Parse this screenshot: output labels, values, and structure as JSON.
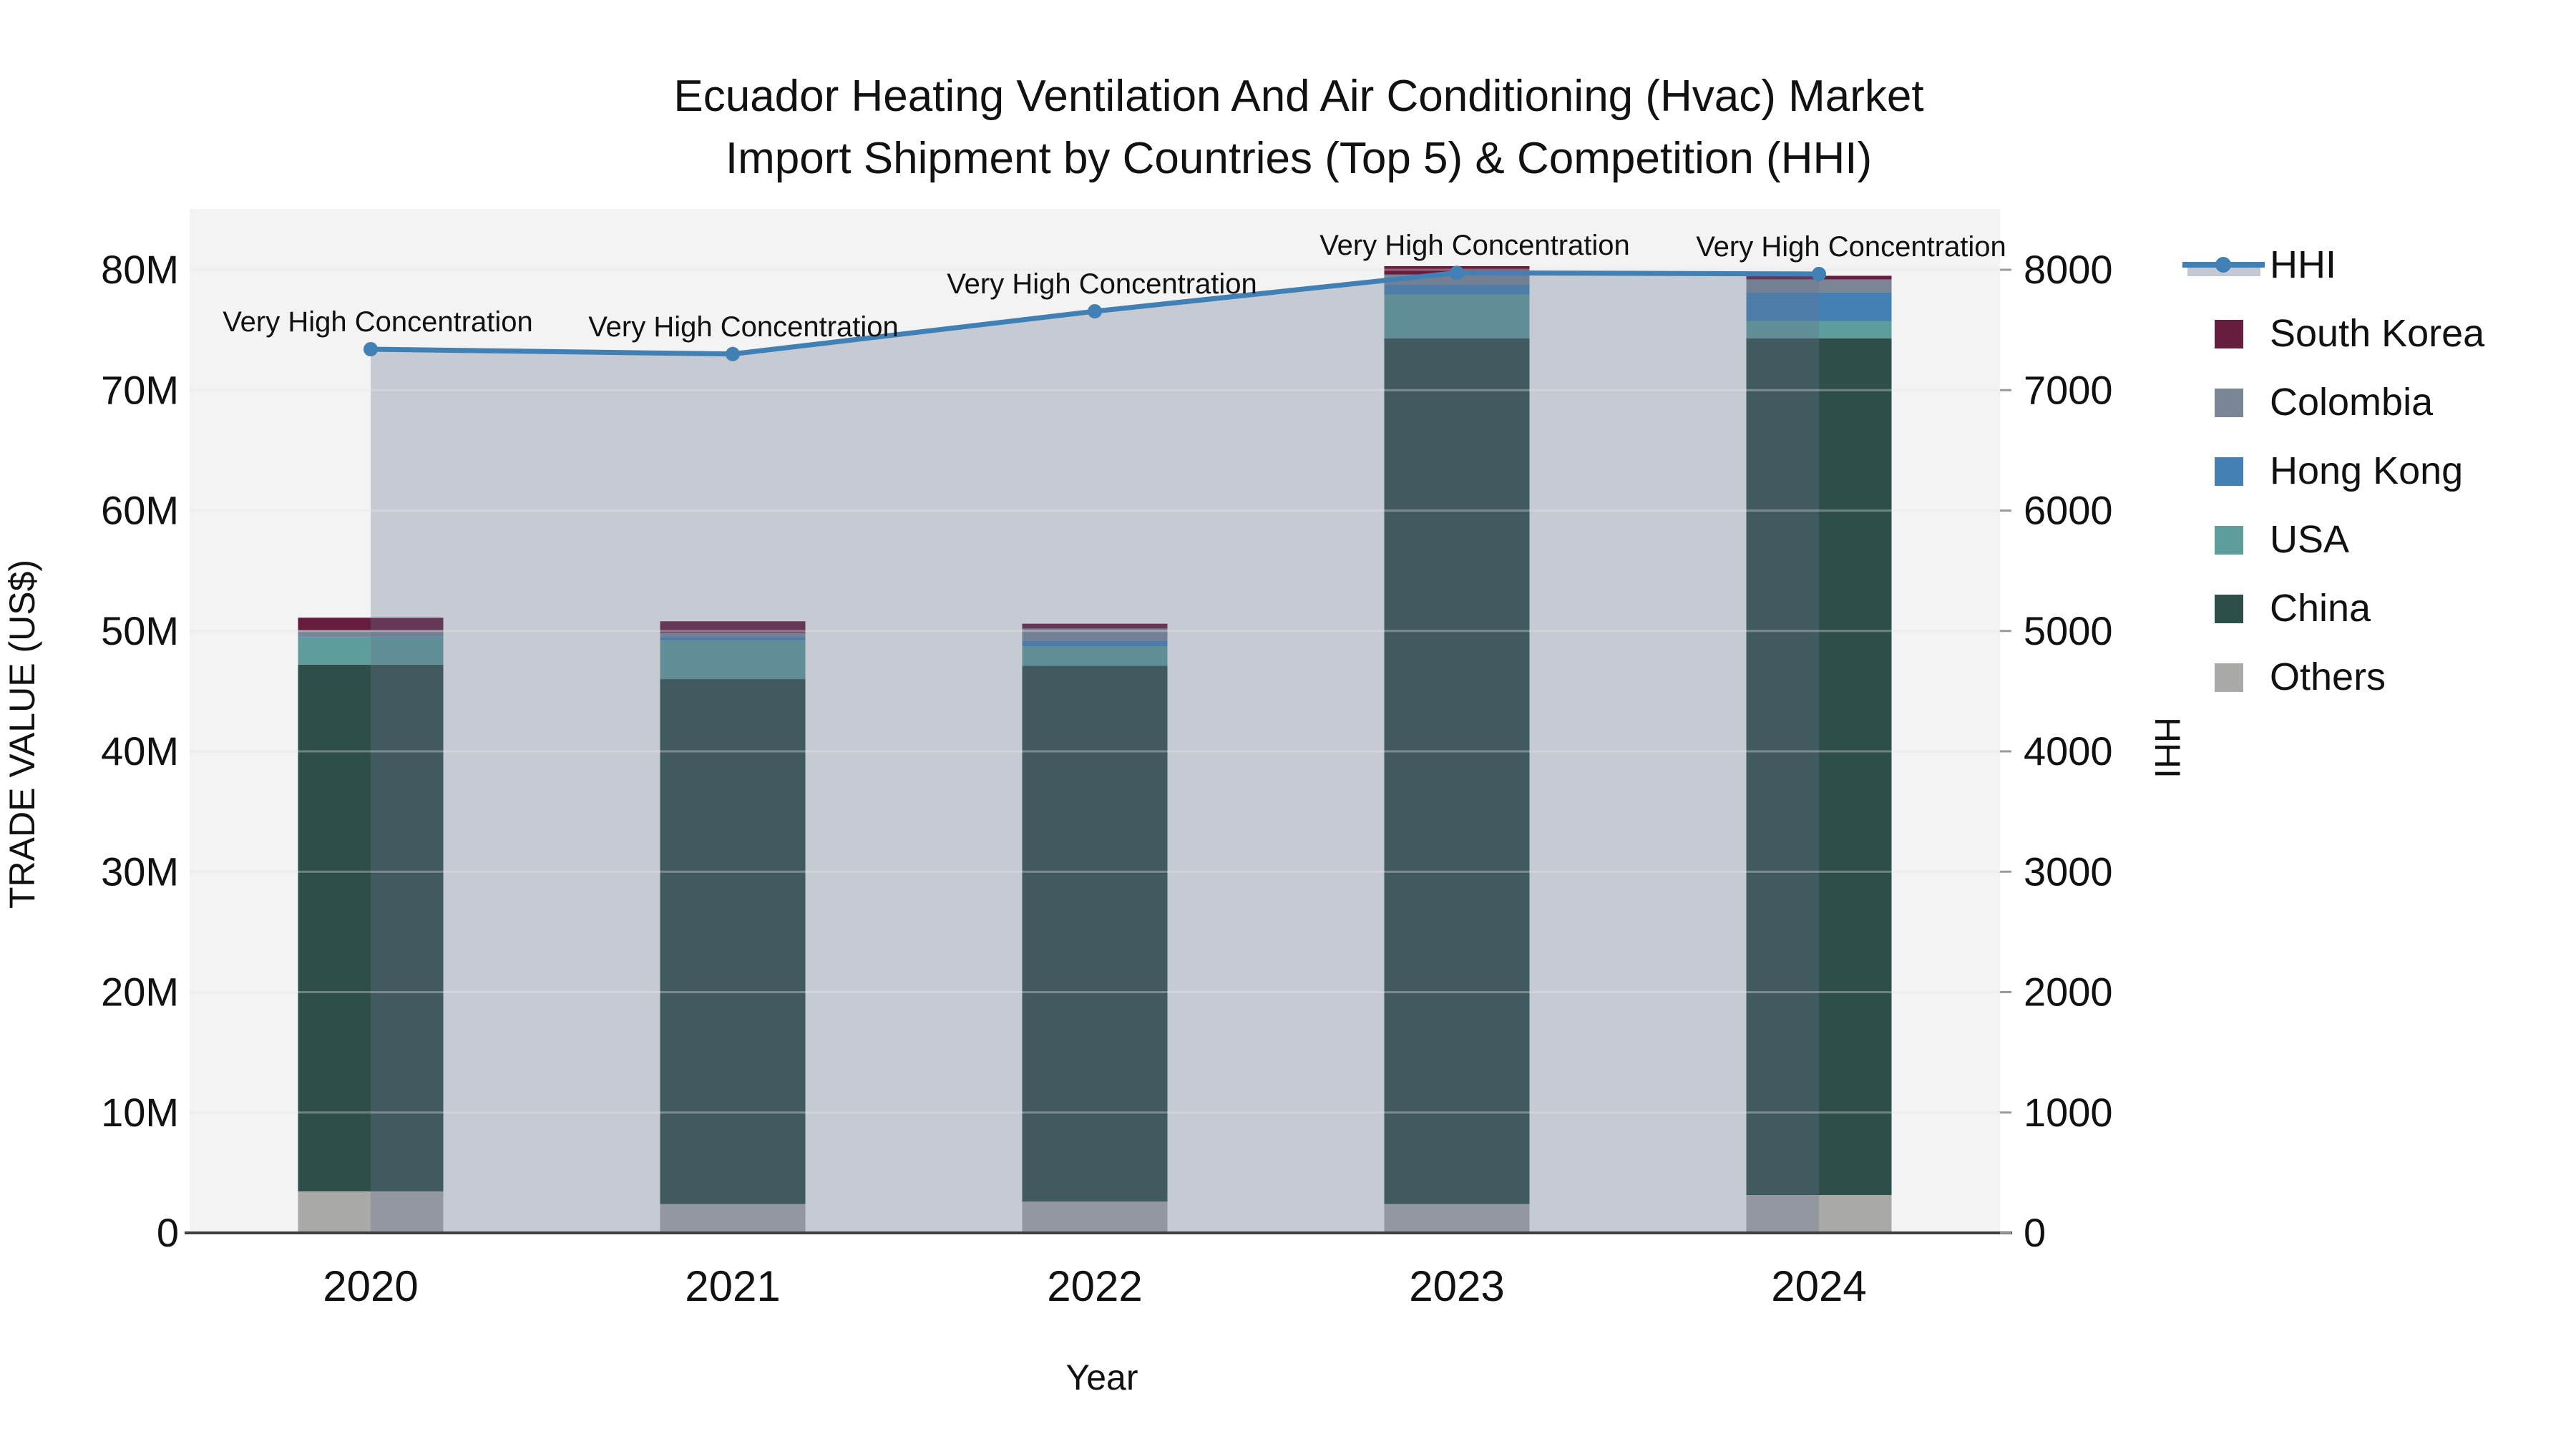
{
  "title": {
    "line1": "Ecuador Heating Ventilation And Air Conditioning (Hvac) Market",
    "line2": "Import Shipment by Countries (Top 5) & Competition (HHI)"
  },
  "chart_data": {
    "type": "bar",
    "subtype": "stacked-bars-with-line-overlay",
    "categories": [
      "2020",
      "2021",
      "2022",
      "2023",
      "2024"
    ],
    "bar_value_unit": "million US$",
    "series": [
      {
        "name": "Others",
        "color": "#a9a9a7",
        "values": [
          3.45,
          2.4,
          2.6,
          2.4,
          3.15
        ]
      },
      {
        "name": "China",
        "color": "#2e4e4a",
        "values": [
          43.75,
          43.6,
          44.5,
          71.9,
          71.15
        ]
      },
      {
        "name": "USA",
        "color": "#5f9d9c",
        "values": [
          2.3,
          3.2,
          1.6,
          3.65,
          1.45
        ]
      },
      {
        "name": "Hong Kong",
        "color": "#4380b4",
        "values": [
          0.05,
          0.3,
          0.5,
          0.8,
          2.35
        ]
      },
      {
        "name": "Colombia",
        "color": "#7a8696",
        "values": [
          0.5,
          0.35,
          1.0,
          0.85,
          1.1
        ]
      },
      {
        "name": "South Korea",
        "color": "#661d3e",
        "values": [
          1.05,
          0.95,
          0.4,
          0.7,
          0.3
        ]
      }
    ],
    "line": {
      "name": "HHI",
      "color": "#4080b4",
      "area_fill": "rgba(104,116,142,0.32)",
      "values": [
        7340,
        7300,
        7655,
        7975,
        7965
      ]
    },
    "annotations": [
      "Very High Concentration",
      "Very High Concentration",
      "Very High Concentration",
      "Very High Concentration",
      "Very High Concentration"
    ],
    "y_left": {
      "label": "TRADE VALUE (US$)",
      "ticks": [
        "0",
        "10M",
        "20M",
        "30M",
        "40M",
        "50M",
        "60M",
        "70M",
        "80M"
      ],
      "max": 80
    },
    "y_right": {
      "label": "HHI",
      "ticks": [
        "0",
        "1000",
        "2000",
        "3000",
        "4000",
        "5000",
        "6000",
        "7000",
        "8000"
      ],
      "max": 8000
    },
    "x": {
      "label": "Year"
    },
    "legend": [
      "HHI",
      "South Korea",
      "Colombia",
      "Hong Kong",
      "USA",
      "China",
      "Others"
    ],
    "layout_hints": {
      "grid": true,
      "legend_position": "right",
      "plot_background": "#f3f3f3"
    }
  }
}
